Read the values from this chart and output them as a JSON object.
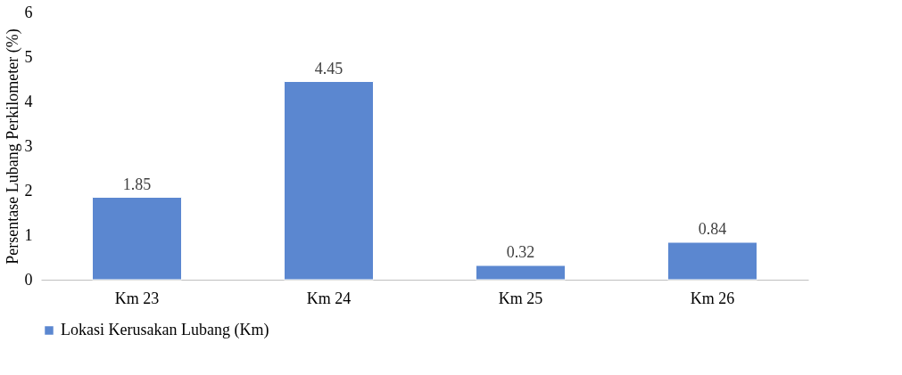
{
  "chart_data": {
    "type": "bar",
    "ylabel": "Persentase Lubang Perkilometer (%)",
    "categories": [
      "Km 23",
      "Km 24",
      "Km 25",
      "Km 26"
    ],
    "series": [
      {
        "name": "Lokasi Kerusakan Lubang (Km)",
        "color": "#5b87d0",
        "values": [
          1.85,
          4.45,
          0.32,
          0.84
        ]
      }
    ],
    "ylim": [
      0,
      6
    ],
    "yticks": [
      0,
      1,
      2,
      3,
      4,
      5,
      6
    ],
    "grid": false,
    "legend": "bottom",
    "data_labels": true
  }
}
